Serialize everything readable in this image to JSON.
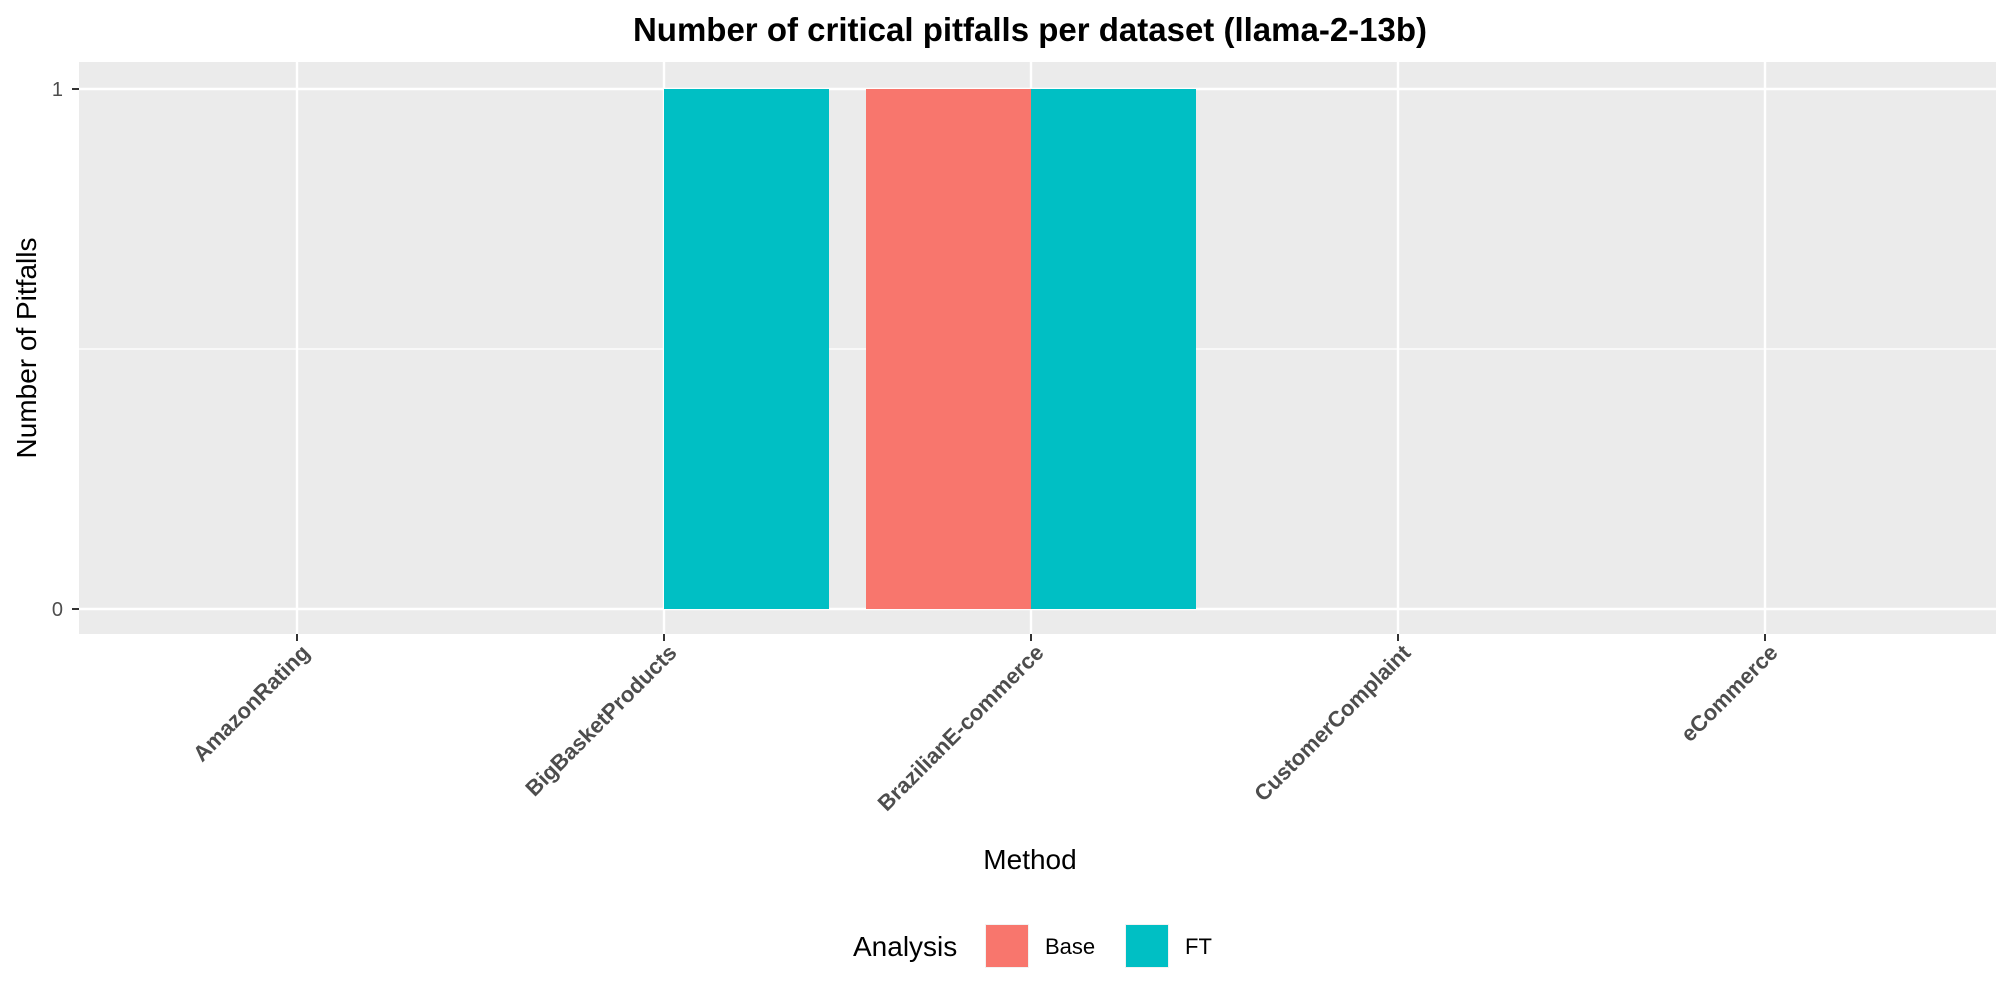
{
  "chart_data": {
    "type": "bar",
    "title": "Number of critical pitfalls per dataset (llama-2-13b)",
    "xlabel": "Method",
    "ylabel": "Number of Pitfalls",
    "categories": [
      "AmazonRating",
      "BigBasketProducts",
      "BrazilianE-commerce",
      "CustomerComplaint",
      "eCommerce"
    ],
    "series": [
      {
        "name": "Base",
        "color": "#F8766D",
        "values": [
          0,
          0,
          1,
          0,
          0
        ]
      },
      {
        "name": "FT",
        "color": "#00BFC4",
        "values": [
          0,
          1,
          1,
          0,
          0
        ]
      }
    ],
    "ylim": [
      0,
      1
    ],
    "yticks": [
      "0",
      "1"
    ],
    "grid": true,
    "legend": {
      "title": "Analysis",
      "position": "bottom"
    },
    "panel_background": "#EBEBEB"
  }
}
